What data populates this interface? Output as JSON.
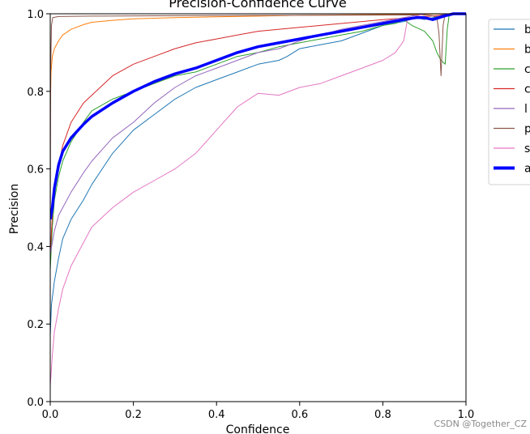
{
  "chart_data": {
    "type": "line",
    "title": "Precision-Confidence Curve",
    "xlabel": "Confidence",
    "ylabel": "Precision",
    "xlim": [
      0,
      1
    ],
    "ylim": [
      0,
      1
    ],
    "x_ticks": [
      "0.0",
      "0.2",
      "0.4",
      "0.6",
      "0.8",
      "1.0"
    ],
    "y_ticks": [
      "0.0",
      "0.2",
      "0.4",
      "0.6",
      "0.8",
      "1.0"
    ],
    "grid": false,
    "legend_placement": "outside-right",
    "series": [
      {
        "name": "b",
        "color": "#1f77b4",
        "width": 1,
        "points": [
          [
            0,
            0.17
          ],
          [
            0.003,
            0.25
          ],
          [
            0.01,
            0.31
          ],
          [
            0.02,
            0.37
          ],
          [
            0.03,
            0.42
          ],
          [
            0.05,
            0.47
          ],
          [
            0.08,
            0.52
          ],
          [
            0.1,
            0.56
          ],
          [
            0.15,
            0.64
          ],
          [
            0.2,
            0.7
          ],
          [
            0.25,
            0.74
          ],
          [
            0.3,
            0.78
          ],
          [
            0.35,
            0.81
          ],
          [
            0.4,
            0.83
          ],
          [
            0.45,
            0.85
          ],
          [
            0.5,
            0.87
          ],
          [
            0.55,
            0.88
          ],
          [
            0.57,
            0.89
          ],
          [
            0.6,
            0.91
          ],
          [
            0.65,
            0.92
          ],
          [
            0.7,
            0.93
          ],
          [
            0.75,
            0.95
          ],
          [
            0.8,
            0.97
          ],
          [
            0.85,
            0.98
          ],
          [
            0.88,
            0.99
          ],
          [
            0.9,
            0.985
          ],
          [
            0.92,
            0.99
          ],
          [
            0.95,
            1.0
          ],
          [
            1.0,
            1.0
          ]
        ]
      },
      {
        "name": "b",
        "color": "#ff7f0e",
        "width": 1,
        "points": [
          [
            0,
            0.74
          ],
          [
            0.002,
            0.85
          ],
          [
            0.005,
            0.89
          ],
          [
            0.01,
            0.91
          ],
          [
            0.02,
            0.93
          ],
          [
            0.03,
            0.945
          ],
          [
            0.05,
            0.96
          ],
          [
            0.08,
            0.972
          ],
          [
            0.1,
            0.978
          ],
          [
            0.15,
            0.983
          ],
          [
            0.2,
            0.987
          ],
          [
            0.3,
            0.99
          ],
          [
            0.4,
            0.992
          ],
          [
            0.5,
            0.994
          ],
          [
            0.6,
            0.996
          ],
          [
            0.7,
            0.997
          ],
          [
            0.8,
            0.998
          ],
          [
            0.9,
            0.999
          ],
          [
            1.0,
            1.0
          ]
        ]
      },
      {
        "name": "c",
        "color": "#2ca02c",
        "width": 1,
        "points": [
          [
            0,
            0.34
          ],
          [
            0.005,
            0.45
          ],
          [
            0.01,
            0.52
          ],
          [
            0.02,
            0.58
          ],
          [
            0.03,
            0.62
          ],
          [
            0.05,
            0.67
          ],
          [
            0.08,
            0.72
          ],
          [
            0.1,
            0.75
          ],
          [
            0.15,
            0.78
          ],
          [
            0.2,
            0.8
          ],
          [
            0.25,
            0.82
          ],
          [
            0.3,
            0.84
          ],
          [
            0.35,
            0.85
          ],
          [
            0.4,
            0.87
          ],
          [
            0.45,
            0.89
          ],
          [
            0.5,
            0.9
          ],
          [
            0.55,
            0.915
          ],
          [
            0.6,
            0.925
          ],
          [
            0.65,
            0.935
          ],
          [
            0.7,
            0.945
          ],
          [
            0.75,
            0.955
          ],
          [
            0.8,
            0.97
          ],
          [
            0.83,
            0.975
          ],
          [
            0.85,
            0.985
          ],
          [
            0.87,
            0.97
          ],
          [
            0.9,
            0.955
          ],
          [
            0.92,
            0.93
          ],
          [
            0.93,
            0.9
          ],
          [
            0.94,
            0.88
          ],
          [
            0.95,
            0.87
          ],
          [
            0.955,
            0.96
          ],
          [
            0.96,
            1.0
          ],
          [
            1.0,
            1.0
          ]
        ]
      },
      {
        "name": "c",
        "color": "#d62728",
        "width": 1,
        "points": [
          [
            0,
            0.38
          ],
          [
            0.005,
            0.48
          ],
          [
            0.01,
            0.55
          ],
          [
            0.02,
            0.61
          ],
          [
            0.03,
            0.66
          ],
          [
            0.05,
            0.72
          ],
          [
            0.08,
            0.77
          ],
          [
            0.1,
            0.79
          ],
          [
            0.15,
            0.84
          ],
          [
            0.2,
            0.87
          ],
          [
            0.25,
            0.89
          ],
          [
            0.3,
            0.91
          ],
          [
            0.35,
            0.925
          ],
          [
            0.4,
            0.935
          ],
          [
            0.45,
            0.945
          ],
          [
            0.5,
            0.955
          ],
          [
            0.6,
            0.965
          ],
          [
            0.7,
            0.975
          ],
          [
            0.8,
            0.985
          ],
          [
            0.9,
            0.993
          ],
          [
            1.0,
            1.0
          ]
        ]
      },
      {
        "name": "l",
        "color": "#9467bd",
        "width": 1,
        "points": [
          [
            0,
            0.38
          ],
          [
            0.01,
            0.44
          ],
          [
            0.02,
            0.48
          ],
          [
            0.05,
            0.54
          ],
          [
            0.08,
            0.59
          ],
          [
            0.1,
            0.62
          ],
          [
            0.15,
            0.68
          ],
          [
            0.2,
            0.72
          ],
          [
            0.25,
            0.77
          ],
          [
            0.3,
            0.81
          ],
          [
            0.35,
            0.84
          ],
          [
            0.4,
            0.86
          ],
          [
            0.45,
            0.88
          ],
          [
            0.5,
            0.9
          ],
          [
            0.55,
            0.91
          ],
          [
            0.6,
            0.93
          ],
          [
            0.65,
            0.945
          ],
          [
            0.7,
            0.96
          ],
          [
            0.75,
            0.97
          ],
          [
            0.8,
            0.98
          ],
          [
            0.85,
            0.99
          ],
          [
            0.9,
            1.0
          ],
          [
            1.0,
            1.0
          ]
        ]
      },
      {
        "name": "p",
        "color": "#8c564b",
        "width": 1,
        "points": [
          [
            0,
            0.35
          ],
          [
            0.001,
            0.85
          ],
          [
            0.003,
            0.97
          ],
          [
            0.006,
            0.99
          ],
          [
            0.02,
            0.993
          ],
          [
            0.1,
            0.994
          ],
          [
            0.3,
            0.995
          ],
          [
            0.6,
            0.996
          ],
          [
            0.9,
            0.997
          ],
          [
            0.92,
            0.995
          ],
          [
            0.93,
            0.99
          ],
          [
            0.935,
            0.95
          ],
          [
            0.94,
            0.84
          ],
          [
            0.945,
            0.97
          ],
          [
            0.95,
            1.0
          ],
          [
            1.0,
            1.0
          ]
        ]
      },
      {
        "name": "s",
        "color": "#e377c2",
        "width": 1,
        "points": [
          [
            0,
            0.04
          ],
          [
            0.005,
            0.12
          ],
          [
            0.01,
            0.18
          ],
          [
            0.02,
            0.24
          ],
          [
            0.03,
            0.29
          ],
          [
            0.05,
            0.35
          ],
          [
            0.08,
            0.41
          ],
          [
            0.1,
            0.45
          ],
          [
            0.15,
            0.5
          ],
          [
            0.2,
            0.54
          ],
          [
            0.25,
            0.57
          ],
          [
            0.3,
            0.6
          ],
          [
            0.35,
            0.64
          ],
          [
            0.4,
            0.7
          ],
          [
            0.45,
            0.76
          ],
          [
            0.5,
            0.795
          ],
          [
            0.55,
            0.79
          ],
          [
            0.6,
            0.81
          ],
          [
            0.65,
            0.82
          ],
          [
            0.7,
            0.84
          ],
          [
            0.75,
            0.86
          ],
          [
            0.8,
            0.88
          ],
          [
            0.83,
            0.9
          ],
          [
            0.85,
            0.93
          ],
          [
            0.86,
            0.99
          ],
          [
            0.87,
            0.99
          ],
          [
            0.9,
            1.0
          ],
          [
            1.0,
            1.0
          ]
        ]
      },
      {
        "name": "a",
        "color": "#0000ff",
        "width": 3.5,
        "points": [
          [
            0,
            0.47
          ],
          [
            0.005,
            0.5
          ],
          [
            0.01,
            0.55
          ],
          [
            0.02,
            0.61
          ],
          [
            0.03,
            0.645
          ],
          [
            0.05,
            0.68
          ],
          [
            0.08,
            0.715
          ],
          [
            0.1,
            0.735
          ],
          [
            0.15,
            0.77
          ],
          [
            0.2,
            0.8
          ],
          [
            0.25,
            0.825
          ],
          [
            0.3,
            0.845
          ],
          [
            0.35,
            0.86
          ],
          [
            0.4,
            0.88
          ],
          [
            0.45,
            0.9
          ],
          [
            0.5,
            0.915
          ],
          [
            0.55,
            0.925
          ],
          [
            0.6,
            0.935
          ],
          [
            0.65,
            0.945
          ],
          [
            0.7,
            0.955
          ],
          [
            0.75,
            0.965
          ],
          [
            0.8,
            0.975
          ],
          [
            0.85,
            0.985
          ],
          [
            0.88,
            0.99
          ],
          [
            0.9,
            0.99
          ],
          [
            0.92,
            0.985
          ],
          [
            0.95,
            0.995
          ],
          [
            0.97,
            1.0
          ],
          [
            1.0,
            1.0
          ]
        ]
      }
    ]
  },
  "watermark": "CSDN @Together_CZ"
}
